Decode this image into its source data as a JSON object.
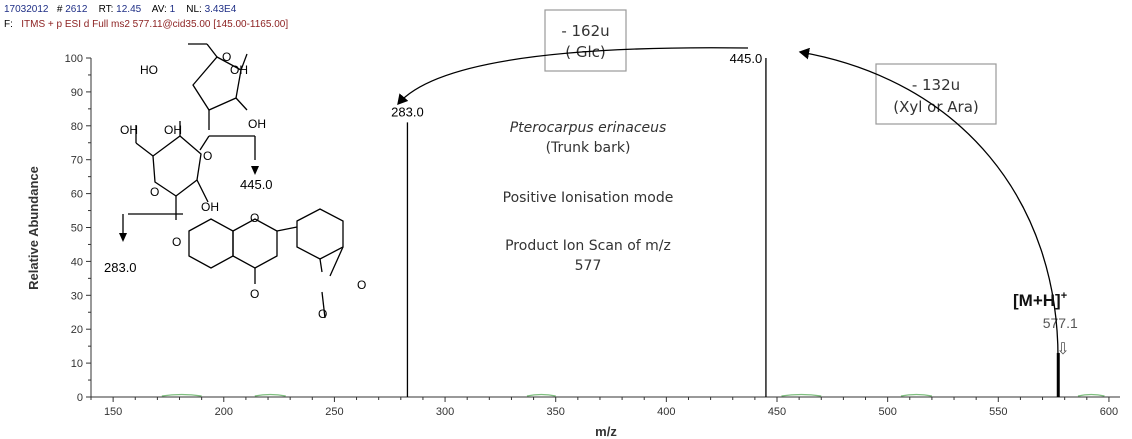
{
  "header": {
    "file_id": "17032012",
    "scan_label": "#",
    "scan_value": "2612",
    "rt_label": "RT:",
    "rt_value": "12.45",
    "av_label": "AV:",
    "av_value": "1",
    "nl_label": "NL:",
    "nl_value": "3.43E4",
    "filter_prefix": "F:",
    "filter_text": "ITMS + p ESI d Full ms2 577.11@cid35.00 [145.00-1165.00]"
  },
  "chart_data": {
    "type": "bar",
    "xlabel": "m/z",
    "ylabel": "Relative Abundance",
    "xlim": [
      140,
      605
    ],
    "ylim": [
      0,
      100
    ],
    "xticks": [
      150,
      200,
      250,
      300,
      350,
      400,
      450,
      500,
      550,
      600
    ],
    "yticks": [
      0,
      10,
      20,
      30,
      40,
      50,
      60,
      70,
      80,
      90,
      100
    ],
    "peaks": [
      {
        "mz": 283.0,
        "intensity": 81,
        "label": "283.0"
      },
      {
        "mz": 445.0,
        "intensity": 100,
        "label": "445.0"
      },
      {
        "mz": 577.1,
        "intensity": 13,
        "label": "577.1"
      }
    ],
    "colors": {
      "axis": "#333333",
      "peak": "#000000",
      "noise": "#7fbf7f"
    }
  },
  "annotations": {
    "loss_glc_line1": "- 162u",
    "loss_glc_line2": "( Glc)",
    "loss_pent_line1": "- 132u",
    "loss_pent_line2": "(Xyl or Ara)",
    "species": "Pterocarpus erinaceus",
    "tissue": "(Trunk bark)",
    "mode": "Positive Ionisation mode",
    "scan_line1": "Product Ion Scan of m/z",
    "scan_line2": "577",
    "precursor_base": "[M+H]",
    "precursor_sup": "+",
    "precursor_value": "577.1",
    "precursor_arrow": "⇩"
  },
  "structure": {
    "ho1": "HO",
    "oh1": "OH",
    "oh2": "OH",
    "oh3": "OH",
    "oh4": "OH",
    "oh5": "OH",
    "o_ring1": "O",
    "o_ring2": "O",
    "o_link1": "O",
    "o_link2": "O",
    "o_chrom_ring": "O",
    "o_keto": "O",
    "o_diox1": "O",
    "o_diox2": "O",
    "frag445": "445.0",
    "frag283": "283.0"
  }
}
